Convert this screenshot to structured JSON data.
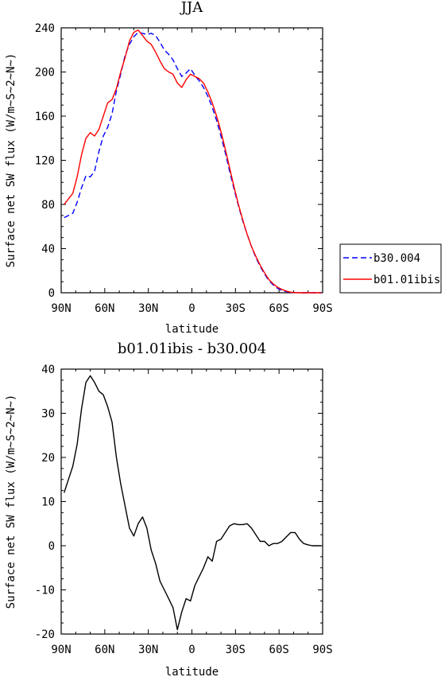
{
  "chart_data": [
    {
      "type": "line",
      "title": "JJA",
      "xlabel": "latitude",
      "ylabel": "Surface net SW flux (W/m~S~2~N~)",
      "xlim": [
        90,
        -90
      ],
      "ylim": [
        0,
        240
      ],
      "x_ticks": [
        90,
        60,
        30,
        0,
        -30,
        -60,
        -90
      ],
      "x_tick_labels": [
        "90N",
        "60N",
        "30N",
        "0",
        "30S",
        "60S",
        "90S"
      ],
      "y_ticks": [
        0,
        40,
        80,
        120,
        160,
        200,
        240
      ],
      "y_tick_labels": [
        "0",
        "40",
        "80",
        "120",
        "160",
        "200",
        "240"
      ],
      "legend_position": "outside-right",
      "legend": [
        "b30.004",
        "b01.01ibis"
      ],
      "series": [
        {
          "name": "b30.004",
          "color": "#0000ff",
          "dash": true,
          "x": [
            88,
            85,
            82,
            79,
            76,
            73,
            70,
            67,
            64,
            61,
            58,
            55,
            52,
            49,
            46,
            43,
            40,
            37,
            34,
            31,
            28,
            25,
            22,
            19,
            16,
            13,
            10,
            7,
            4,
            1,
            -2,
            -5,
            -8,
            -11,
            -14,
            -17,
            -20,
            -23,
            -26,
            -29,
            -32,
            -35,
            -38,
            -41,
            -44,
            -47,
            -50,
            -53,
            -56,
            -59,
            -62,
            -65,
            -68,
            -71,
            -74,
            -77,
            -80,
            -83,
            -86,
            -89
          ],
          "y": [
            68,
            70,
            72,
            82,
            95,
            106,
            105,
            110,
            128,
            142,
            150,
            162,
            183,
            198,
            215,
            225,
            232,
            236,
            235,
            234,
            235,
            233,
            227,
            220,
            216,
            211,
            203,
            196,
            199,
            203,
            197,
            192,
            186,
            178,
            168,
            156,
            142,
            127,
            110,
            94,
            79,
            65,
            53,
            42,
            32,
            24,
            17,
            11,
            7,
            4,
            2,
            1,
            0.5,
            0.2,
            0,
            0,
            0,
            0,
            0,
            0
          ]
        },
        {
          "name": "b01.01ibis",
          "color": "#ff0000",
          "dash": false,
          "x": [
            88,
            85,
            82,
            79,
            76,
            73,
            70,
            67,
            64,
            61,
            58,
            55,
            52,
            49,
            46,
            43,
            40,
            37,
            34,
            31,
            28,
            25,
            22,
            19,
            16,
            13,
            10,
            7,
            4,
            1,
            -2,
            -5,
            -8,
            -11,
            -14,
            -17,
            -20,
            -23,
            -26,
            -29,
            -32,
            -35,
            -38,
            -41,
            -44,
            -47,
            -50,
            -53,
            -56,
            -59,
            -62,
            -65,
            -68,
            -71,
            -74,
            -77,
            -80,
            -83,
            -86,
            -89
          ],
          "y": [
            80,
            85,
            90,
            105,
            125,
            140,
            145,
            142,
            148,
            160,
            172,
            175,
            185,
            200,
            213,
            228,
            236,
            238,
            233,
            228,
            225,
            218,
            210,
            203,
            200,
            198,
            190,
            186,
            193,
            198,
            196,
            194,
            190,
            182,
            172,
            160,
            146,
            130,
            113,
            96,
            80,
            66,
            53,
            42,
            33,
            25,
            18,
            12,
            8,
            5,
            3,
            1.5,
            0.5,
            0.2,
            0,
            0,
            0,
            0,
            0,
            0
          ]
        }
      ]
    },
    {
      "type": "line",
      "title": "b01.01ibis - b30.004",
      "xlabel": "latitude",
      "ylabel": "Surface net SW flux (W/m~S~2~N~)",
      "xlim": [
        90,
        -90
      ],
      "ylim": [
        -20,
        40
      ],
      "x_ticks": [
        90,
        60,
        30,
        0,
        -30,
        -60,
        -90
      ],
      "x_tick_labels": [
        "90N",
        "60N",
        "30N",
        "0",
        "30S",
        "60S",
        "90S"
      ],
      "y_ticks": [
        -20,
        -10,
        0,
        10,
        20,
        30,
        40
      ],
      "y_tick_labels": [
        "-20",
        "-10",
        "0",
        "10",
        "20",
        "30",
        "40"
      ],
      "series": [
        {
          "color": "#000000",
          "dash": false,
          "x": [
            88,
            85,
            82,
            79,
            76,
            73,
            70,
            67,
            64,
            61,
            58,
            55,
            52,
            49,
            46,
            43,
            40,
            37,
            34,
            31,
            28,
            25,
            22,
            19,
            16,
            13,
            10,
            7,
            4,
            1,
            -2,
            -5,
            -8,
            -11,
            -14,
            -17,
            -20,
            -23,
            -26,
            -29,
            -32,
            -35,
            -38,
            -41,
            -44,
            -47,
            -50,
            -53,
            -56,
            -59,
            -62,
            -65,
            -68,
            -71,
            -74,
            -77,
            -80,
            -83,
            -86,
            -89
          ],
          "y": [
            12,
            15,
            18,
            23,
            31,
            37,
            38.5,
            37,
            35,
            34.2,
            31.5,
            28,
            20,
            14,
            9,
            4,
            2.2,
            5,
            6.5,
            4,
            -1,
            -4,
            -8,
            -10,
            -12,
            -14,
            -19,
            -15,
            -12,
            -12.5,
            -9,
            -7,
            -5,
            -2.5,
            -3.5,
            1,
            1.5,
            3,
            4.5,
            5,
            4.8,
            4.8,
            5,
            4,
            2.5,
            1,
            1,
            0,
            0.5,
            0.5,
            1,
            2,
            3,
            3,
            1.5,
            0.5,
            0.2,
            0,
            0,
            0
          ]
        }
      ]
    }
  ]
}
